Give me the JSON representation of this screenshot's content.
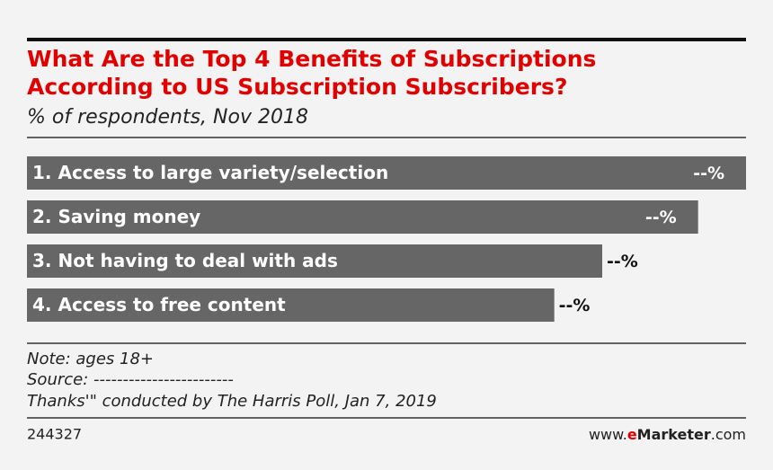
{
  "chart_data": {
    "type": "bar",
    "orientation": "horizontal",
    "title_lines": [
      "What Are the Top 4 Benefits of Subscriptions",
      "According to US Subscription Subscribers?"
    ],
    "subtitle": "% of respondents, Nov 2018",
    "categories": [
      "1. Access to large variety/selection",
      "2. Saving money",
      "3. Not having to deal with ads",
      "4. Access to free content"
    ],
    "values": [
      60,
      56,
      48,
      44
    ],
    "value_labels": [
      "--%",
      "--%",
      "--%",
      "--%"
    ],
    "color": "#666666",
    "notes": [
      "Note: ages 18+",
      "Source: ------------------------",
      "Thanks'\" conducted by The Harris Poll, Jan 7, 2019"
    ],
    "chart_id": "244327",
    "site": [
      "www.",
      "e",
      "Marketer",
      ".com"
    ]
  }
}
